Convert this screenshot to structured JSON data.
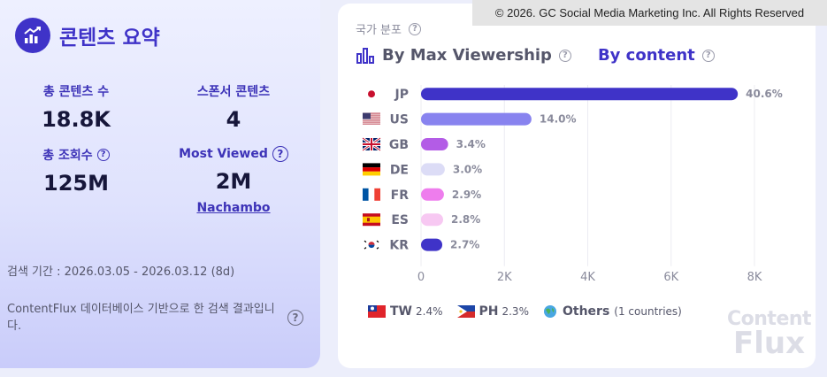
{
  "summary": {
    "title": "콘텐츠 요약",
    "total_contents_label": "총 콘텐츠 수",
    "total_contents_value": "18.8K",
    "sponsor_contents_label": "스폰서 콘텐츠",
    "sponsor_contents_value": "4",
    "total_views_label": "총 조회수",
    "total_views_value": "125M",
    "most_viewed_label": "Most Viewed",
    "most_viewed_value": "2M",
    "most_viewed_link": "Nachambo",
    "period": "검색 기간 : 2026.03.05 - 2026.03.12 (8d)",
    "note": "ContentFlux 데이터베이스 기반으로 한 검색 결과입니다."
  },
  "copyright": "© 2026. GC Social Media Marketing Inc. All Rights Reserved",
  "card": {
    "label": "국가 분포",
    "tab_max": "By Max Viewership",
    "tab_content": "By content"
  },
  "legend_extra": [
    {
      "code": "TW",
      "pct": "2.4%"
    },
    {
      "code": "PH",
      "pct": "2.3%"
    }
  ],
  "legend_others": {
    "label": "Others",
    "count": "(1 countries)"
  },
  "watermark": {
    "line1": "Content",
    "line2": "Flux"
  },
  "chart_data": {
    "type": "bar",
    "orientation": "horizontal",
    "categories": [
      "JP",
      "US",
      "GB",
      "DE",
      "FR",
      "ES",
      "KR"
    ],
    "values": [
      7600,
      2650,
      650,
      570,
      550,
      530,
      510
    ],
    "labels": [
      "40.6%",
      "14.0%",
      "3.4%",
      "3.0%",
      "2.9%",
      "2.8%",
      "2.7%"
    ],
    "colors": [
      "#3f33c8",
      "#8883ef",
      "#b35ce6",
      "#dcdcf6",
      "#ee7ded",
      "#f7c8f2",
      "#3f33c8"
    ],
    "xticks": [
      "0",
      "2K",
      "4K",
      "6K",
      "8K"
    ],
    "xlim": [
      0,
      8000
    ],
    "grid": true
  }
}
